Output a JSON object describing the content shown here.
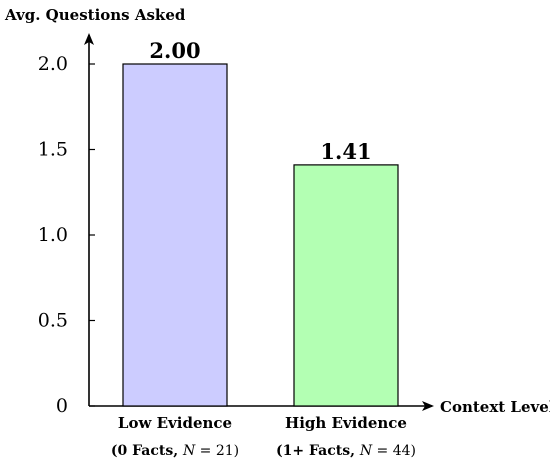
{
  "chart_data": {
    "type": "bar",
    "ylabel": "Avg. Questions Asked",
    "xlabel": "Context Level",
    "ylim": [
      0,
      2.0
    ],
    "y_ticks": [
      {
        "value": 0,
        "label": "0"
      },
      {
        "value": 0.5,
        "label": "0.5"
      },
      {
        "value": 1.0,
        "label": "1.0"
      },
      {
        "value": 1.5,
        "label": "1.5"
      },
      {
        "value": 2.0,
        "label": "2.0"
      }
    ],
    "categories": [
      "Low Evidence",
      "High Evidence"
    ],
    "sublabels": [
      {
        "prefix": "(0 Facts, ",
        "var": "N",
        "suffix": " = 21)"
      },
      {
        "prefix": "(1+ Facts, ",
        "var": "N",
        "suffix": " = 44)"
      }
    ],
    "values": [
      2.0,
      1.41
    ],
    "data_labels": [
      "2.00",
      "1.41"
    ],
    "colors": {
      "bar_fills": [
        "#ccccff",
        "#b3ffb3"
      ],
      "bar_stroke": "#000000",
      "axis": "#000000",
      "text": "#000000"
    },
    "grid": false
  }
}
